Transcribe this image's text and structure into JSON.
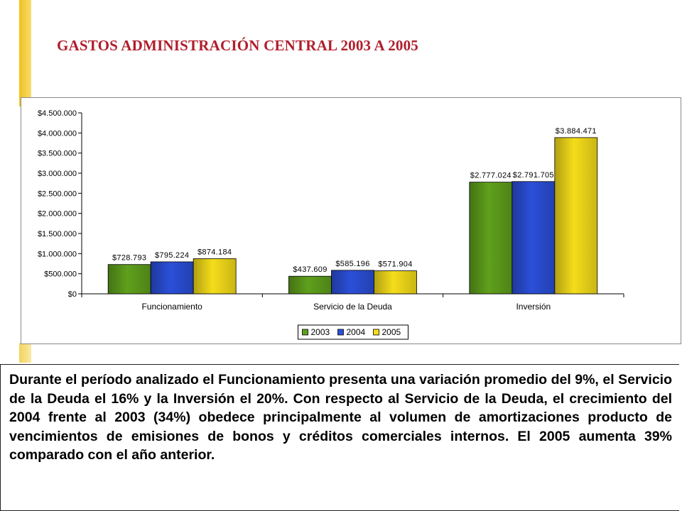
{
  "page": {
    "title": "GASTOS ADMINISTRACIÓN CENTRAL  2003 A 2005",
    "description": "Durante el período analizado el Funcionamiento presenta una variación promedio del 9%, el Servicio de la Deuda el 16% y la Inversión el 20%. Con respecto al Servicio de la Deuda, el crecimiento del 2004 frente al 2003 (34%) obedece principalmente al volumen de amortizaciones producto de vencimientos de emisiones de bonos y créditos comerciales internos. El 2005 aumenta 39% comparado con el año anterior."
  },
  "colors": {
    "accent": "#f3cc3a",
    "title": "#b01e2b"
  },
  "chart_data": {
    "type": "bar",
    "title": "",
    "xlabel": "",
    "ylabel": "",
    "categories": [
      "Funcionamiento",
      "Servicio de la Deuda",
      "Inversión"
    ],
    "series": [
      {
        "name": "2003",
        "color": "#5fa01c",
        "values": [
          728793,
          437609,
          2777024
        ],
        "labels": [
          "$728.793",
          "$437.609",
          "$2.777.024"
        ]
      },
      {
        "name": "2004",
        "color": "#2b4fd8",
        "values": [
          795224,
          585196,
          2791705
        ],
        "labels": [
          "$795.224",
          "$585.196",
          "$2.791.705"
        ]
      },
      {
        "name": "2005",
        "color": "#f5dd1a",
        "values": [
          874184,
          571904,
          3884471
        ],
        "labels": [
          "$874.184",
          "$571.904",
          "$3.884.471"
        ]
      }
    ],
    "ylim": [
      0,
      4500000
    ],
    "yticks": [
      0,
      500000,
      1000000,
      1500000,
      2000000,
      2500000,
      3000000,
      3500000,
      4000000,
      4500000
    ],
    "ytick_labels": [
      "$0",
      "$500.000",
      "$1.000.000",
      "$1.500.000",
      "$2.000.000",
      "$2.500.000",
      "$3.000.000",
      "$3.500.000",
      "$4.000.000",
      "$4.500.000"
    ],
    "grid": false,
    "legend_position": "bottom"
  }
}
